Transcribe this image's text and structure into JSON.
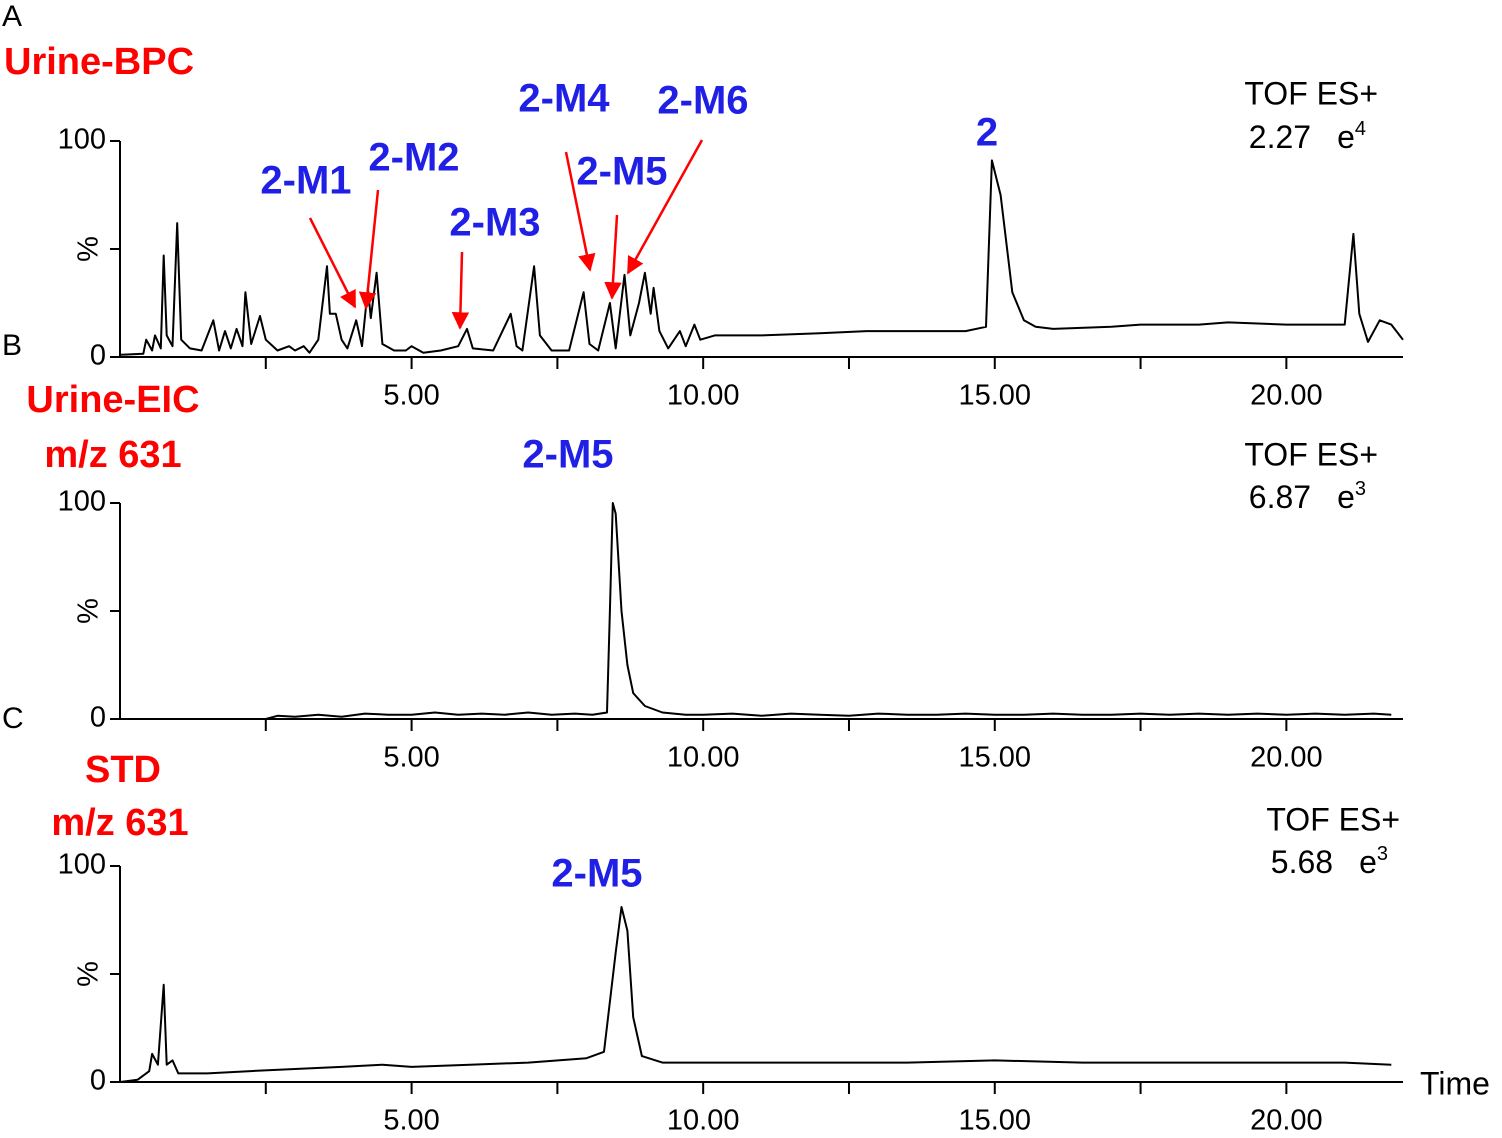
{
  "chart_data": [
    {
      "type": "line",
      "panel_label": "A",
      "title": [
        "Urine-BPC"
      ],
      "instrument": "TOF ES+",
      "scale": {
        "mantissa": "2.27",
        "base": "e",
        "exponent": "4"
      },
      "annotations": [
        "2-M1",
        "2-M2",
        "2-M3",
        "2-M4",
        "2-M5",
        "2-M6",
        "2"
      ],
      "xlim": [
        0,
        22
      ],
      "ylim": [
        0,
        100
      ],
      "xticks": [
        {
          "value": 5,
          "label": "5.00"
        },
        {
          "value": 10,
          "label": "10.00"
        },
        {
          "value": 15,
          "label": "15.00"
        },
        {
          "value": 20,
          "label": "20.00"
        }
      ],
      "xminorticks": [
        2.5,
        7.5,
        12.5,
        17.5
      ],
      "yticks": [
        0,
        {
          "value": 50,
          "label": "%"
        },
        100
      ],
      "color": "#000000",
      "x": [
        0,
        0.4,
        0.45,
        0.55,
        0.6,
        0.7,
        0.75,
        0.8,
        0.9,
        0.98,
        1.05,
        1.2,
        1.4,
        1.6,
        1.7,
        1.8,
        1.9,
        2.0,
        2.1,
        2.15,
        2.25,
        2.4,
        2.5,
        2.7,
        2.9,
        3.0,
        3.15,
        3.25,
        3.4,
        3.55,
        3.6,
        3.7,
        3.8,
        3.9,
        4.05,
        4.15,
        4.25,
        4.3,
        4.4,
        4.5,
        4.7,
        4.9,
        5.0,
        5.2,
        5.5,
        5.8,
        5.95,
        6.05,
        6.4,
        6.7,
        6.8,
        6.9,
        7.1,
        7.2,
        7.4,
        7.7,
        7.95,
        8.05,
        8.2,
        8.4,
        8.5,
        8.65,
        8.75,
        8.9,
        9.0,
        9.1,
        9.15,
        9.25,
        9.4,
        9.6,
        9.7,
        9.85,
        9.95,
        10.2,
        11,
        12,
        12.8,
        13.5,
        14.5,
        14.85,
        14.95,
        15.1,
        15.3,
        15.5,
        15.7,
        16,
        17,
        17.5,
        18.5,
        19,
        20,
        21,
        21.15,
        21.25,
        21.4,
        21.6,
        21.8,
        22
      ],
      "values": [
        1,
        1.5,
        8,
        3,
        10,
        4,
        47,
        10,
        5,
        62,
        8,
        4,
        3,
        17,
        3,
        12,
        4,
        13,
        5,
        30,
        6,
        19,
        8,
        3,
        5,
        3,
        5,
        2,
        8,
        42,
        20,
        20,
        8,
        4,
        17,
        5,
        32,
        18,
        39,
        6,
        3,
        3,
        5,
        2,
        3,
        5,
        13,
        4,
        3,
        20,
        5,
        3,
        42,
        10,
        3,
        3,
        30,
        6,
        3,
        25,
        4,
        38,
        10,
        25,
        39,
        20,
        32,
        12,
        4,
        12,
        5,
        15,
        8,
        10,
        10,
        11,
        12,
        12,
        12,
        14,
        91,
        75,
        30,
        17,
        14,
        13,
        14,
        15,
        15,
        16,
        15,
        15,
        57,
        20,
        7,
        17,
        15,
        8
      ]
    },
    {
      "type": "line",
      "panel_label": "B",
      "title": [
        "Urine-EIC",
        "m/z 631"
      ],
      "instrument": "TOF ES+",
      "scale": {
        "mantissa": "6.87",
        "base": "e",
        "exponent": "3"
      },
      "annotations": [
        "2-M5"
      ],
      "xlim": [
        0,
        22
      ],
      "ylim": [
        0,
        100
      ],
      "xticks": [
        {
          "value": 5,
          "label": "5.00"
        },
        {
          "value": 10,
          "label": "10.00"
        },
        {
          "value": 15,
          "label": "15.00"
        },
        {
          "value": 20,
          "label": "20.00"
        }
      ],
      "xminorticks": [
        2.5,
        7.5,
        12.5,
        17.5
      ],
      "yticks": [
        0,
        {
          "value": 50,
          "label": "%"
        },
        100
      ],
      "color": "#000000",
      "x": [
        0,
        2.5,
        2.7,
        3.0,
        3.4,
        3.8,
        4.2,
        4.6,
        5.0,
        5.4,
        5.8,
        6.2,
        6.6,
        7.0,
        7.4,
        7.8,
        8.1,
        8.35,
        8.4,
        8.45,
        8.5,
        8.6,
        8.7,
        8.8,
        9.0,
        9.3,
        9.7,
        10.0,
        10.5,
        11.0,
        11.5,
        12.0,
        12.5,
        13.0,
        13.5,
        14.0,
        14.5,
        15.0,
        15.5,
        16.0,
        16.5,
        17.0,
        17.5,
        18.0,
        18.5,
        19.0,
        19.5,
        20.0,
        20.5,
        21.0,
        21.5,
        21.8
      ],
      "values": [
        0,
        0,
        1.5,
        1,
        2,
        1,
        2.5,
        2,
        2,
        3,
        2,
        2.5,
        2,
        3,
        2,
        2.5,
        2,
        3,
        50,
        100,
        95,
        50,
        25,
        12,
        6,
        3,
        2,
        2,
        2.5,
        1.5,
        2.5,
        2,
        1.5,
        2.5,
        2,
        2,
        2.5,
        2,
        2,
        2.5,
        2,
        2,
        2.5,
        2,
        2.5,
        2,
        2.5,
        2,
        2.5,
        2,
        2.5,
        2
      ]
    },
    {
      "type": "line",
      "panel_label": "C",
      "title": [
        "STD",
        "m/z 631"
      ],
      "instrument": "TOF ES+",
      "scale": {
        "mantissa": "5.68",
        "base": "e",
        "exponent": "3"
      },
      "annotations": [
        "2-M5"
      ],
      "xlabel": "Time",
      "xlim": [
        0,
        22
      ],
      "ylim": [
        0,
        100
      ],
      "xticks": [
        {
          "value": 5,
          "label": "5.00"
        },
        {
          "value": 10,
          "label": "10.00"
        },
        {
          "value": 15,
          "label": "15.00"
        },
        {
          "value": 20,
          "label": "20.00"
        }
      ],
      "xminorticks": [
        2.5,
        7.5,
        12.5,
        17.5
      ],
      "yticks": [
        0,
        {
          "value": 50,
          "label": "%"
        },
        100
      ],
      "color": "#000000",
      "x": [
        0,
        0.3,
        0.5,
        0.55,
        0.65,
        0.75,
        0.8,
        0.9,
        1.0,
        1.5,
        2.2,
        3.0,
        3.8,
        4.5,
        5.0,
        6.0,
        7.0,
        8.0,
        8.3,
        8.5,
        8.6,
        8.7,
        8.8,
        8.95,
        9.3,
        10.5,
        12.0,
        13.5,
        15.0,
        16.5,
        18.0,
        19.5,
        21.0,
        21.8
      ],
      "values": [
        0,
        1,
        5,
        13,
        8,
        45,
        8,
        10,
        4,
        4,
        5,
        6,
        7,
        8,
        7,
        8,
        9,
        11,
        14,
        60,
        81,
        70,
        30,
        12,
        9,
        9,
        9,
        9,
        10,
        9,
        9,
        9,
        9,
        8
      ]
    }
  ]
}
